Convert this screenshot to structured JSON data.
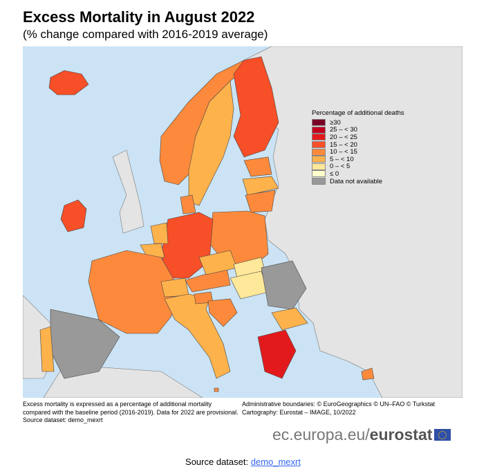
{
  "title": "Excess Mortality in August 2022",
  "subtitle": "(% change compared with 2016-2019 average)",
  "legend": {
    "title": "Percentage of additional deaths",
    "items": [
      {
        "label": "≥30",
        "color": "#7a0026"
      },
      {
        "label": "25 – < 30",
        "color": "#c4001f"
      },
      {
        "label": "20 – < 25",
        "color": "#e31a1c"
      },
      {
        "label": "15 – < 20",
        "color": "#f74f28"
      },
      {
        "label": "10 – < 15",
        "color": "#fd8a3c"
      },
      {
        "label": "5 – < 10",
        "color": "#feb24c"
      },
      {
        "label": "0 – < 5",
        "color": "#fee89a"
      },
      {
        "label": "≤ 0",
        "color": "#ffffcc"
      },
      {
        "label": "Data not available",
        "color": "#999999"
      }
    ]
  },
  "countries": [
    {
      "name": "Iceland",
      "class": "15 – < 20"
    },
    {
      "name": "Ireland",
      "class": "15 – < 20"
    },
    {
      "name": "Norway",
      "class": "10 – < 15"
    },
    {
      "name": "Sweden",
      "class": "5 – < 10"
    },
    {
      "name": "Finland",
      "class": "15 – < 20"
    },
    {
      "name": "Estonia",
      "class": "10 – < 15"
    },
    {
      "name": "Latvia",
      "class": "5 – < 10"
    },
    {
      "name": "Lithuania",
      "class": "10 – < 15"
    },
    {
      "name": "Denmark",
      "class": "10 – < 15"
    },
    {
      "name": "Poland",
      "class": "10 – < 15"
    },
    {
      "name": "Germany",
      "class": "15 – < 20"
    },
    {
      "name": "Netherlands",
      "class": "5 – < 10"
    },
    {
      "name": "Belgium",
      "class": "5 – < 10"
    },
    {
      "name": "France",
      "class": "10 – < 15"
    },
    {
      "name": "Spain",
      "class": "Data not available"
    },
    {
      "name": "Portugal",
      "class": "5 – < 10"
    },
    {
      "name": "Switzerland",
      "class": "5 – < 10"
    },
    {
      "name": "Italy",
      "class": "5 – < 10"
    },
    {
      "name": "Austria",
      "class": "10 – < 15"
    },
    {
      "name": "Czechia",
      "class": "5 – < 10"
    },
    {
      "name": "Slovakia",
      "class": "0 – < 5"
    },
    {
      "name": "Hungary",
      "class": "0 – < 5"
    },
    {
      "name": "Slovenia",
      "class": "10 – < 15"
    },
    {
      "name": "Croatia",
      "class": "10 – < 15"
    },
    {
      "name": "Romania",
      "class": "Data not available"
    },
    {
      "name": "Bulgaria",
      "class": "5 – < 10"
    },
    {
      "name": "Greece",
      "class": "20 – < 25"
    },
    {
      "name": "Cyprus",
      "class": "10 – < 15"
    },
    {
      "name": "Malta",
      "class": "10 – < 15"
    }
  ],
  "notes": {
    "left": "Excess mortality is expressed as a percentage of additional mortality\ncompared with the baseline period (2016-2019). Data for 2022 are provisional.\nSource dataset: demo_mexrt",
    "right": "Administrative boundaries: © EuroGeographics © UN–FAO © Turkstat\nCartography: Eurostat – IMAGE, 10/2022"
  },
  "logo": {
    "domain": "ec.europa.eu/",
    "brand": "eurostat"
  },
  "source": {
    "label": "Source dataset: ",
    "link": "demo_mexrt"
  }
}
